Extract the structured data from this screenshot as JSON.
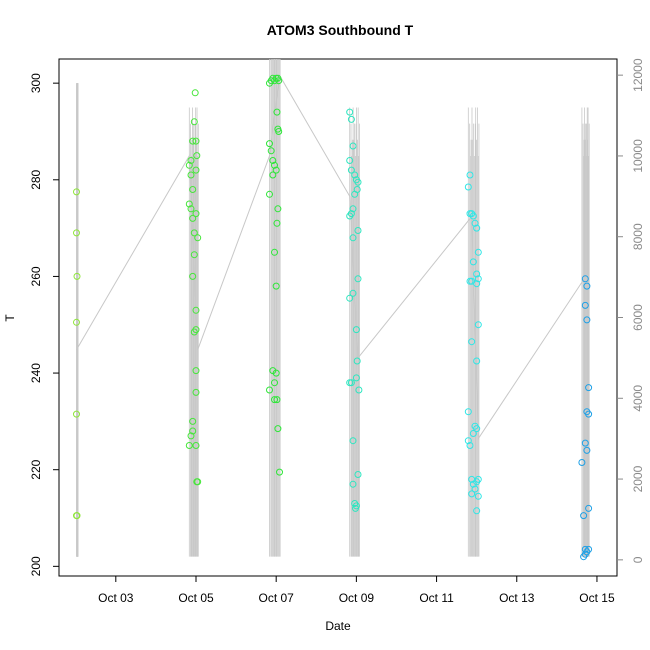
{
  "chart_data": {
    "type": "scatter",
    "title": "ATOM3 Southbound T",
    "xlabel": "Date",
    "ylabel": "T",
    "x_axis": {
      "type": "date",
      "ticks": [
        {
          "date": "2023-10-03",
          "label": "Oct 03"
        },
        {
          "date": "2023-10-05",
          "label": "Oct 05"
        },
        {
          "date": "2023-10-07",
          "label": "Oct 07"
        },
        {
          "date": "2023-10-09",
          "label": "Oct 09"
        },
        {
          "date": "2023-10-11",
          "label": "Oct 11"
        },
        {
          "date": "2023-10-13",
          "label": "Oct 13"
        },
        {
          "date": "2023-10-15",
          "label": "Oct 15"
        }
      ],
      "xlim": [
        "2023-10-01T14:00",
        "2023-10-15T12:00"
      ]
    },
    "y_axis": {
      "ticks": [
        200,
        220,
        240,
        260,
        280,
        300
      ],
      "ylim": [
        198,
        305
      ]
    },
    "y2_axis": {
      "ticks": [
        0,
        2000,
        4000,
        6000,
        8000,
        10000,
        12000
      ],
      "ylim": [
        -400,
        12400
      ],
      "color": "#8a8a8a"
    },
    "grid": false,
    "legend": "none",
    "point_style": "open-circle",
    "point_colors": {
      "Oct 02": "#8ee63a",
      "Oct 05": "#46e63a",
      "Oct 07": "#2ee638",
      "Oct 09": "#2ee6c0",
      "Oct 12": "#2ee6e6",
      "Oct 14": "#1ea0e6"
    },
    "line_color": "#c8c8c8",
    "point_series": [
      {
        "date": "2023-10-02",
        "color": "#8ee63a",
        "points": [
          [
            "10-02T00:30",
            277.5
          ],
          [
            "10-02T00:30",
            269
          ],
          [
            "10-02T00:45",
            260
          ],
          [
            "10-02T00:30",
            250.5
          ],
          [
            "10-02T00:30",
            231.5
          ],
          [
            "10-02T00:30",
            210.5
          ],
          [
            "10-02T00:45",
            210.5
          ]
        ]
      },
      {
        "date": "2023-10-05",
        "color": "#46e63a",
        "points": [
          [
            "10-04T20:00",
            283
          ],
          [
            "10-04T21:00",
            284
          ],
          [
            "10-04T22:00",
            288
          ],
          [
            "10-04T23:00",
            292
          ],
          [
            "10-04T23:30",
            298
          ],
          [
            "10-05T00:00",
            288
          ],
          [
            "10-05T00:30",
            285
          ],
          [
            "10-04T21:00",
            281
          ],
          [
            "10-04T22:00",
            278
          ],
          [
            "10-05T00:00",
            282
          ],
          [
            "10-04T20:00",
            275
          ],
          [
            "10-04T21:00",
            274
          ],
          [
            "10-04T22:00",
            272
          ],
          [
            "10-05T00:00",
            273
          ],
          [
            "10-04T23:00",
            269
          ],
          [
            "10-05T01:00",
            268
          ],
          [
            "10-04T23:00",
            264.5
          ],
          [
            "10-04T22:00",
            260
          ],
          [
            "10-05T00:00",
            253
          ],
          [
            "10-05T00:00",
            249
          ],
          [
            "10-04T23:00",
            248.5
          ],
          [
            "10-05T00:00",
            240.5
          ],
          [
            "10-05T00:00",
            236
          ],
          [
            "10-04T22:00",
            230
          ],
          [
            "10-04T21:00",
            227
          ],
          [
            "10-04T22:00",
            228
          ],
          [
            "10-04T20:00",
            225
          ],
          [
            "10-05T00:00",
            225
          ],
          [
            "10-05T00:30",
            217.5
          ],
          [
            "10-05T01:00",
            217.5
          ]
        ]
      },
      {
        "date": "2023-10-07",
        "color": "#2ee638",
        "points": [
          [
            "10-06T20:00",
            300
          ],
          [
            "10-06T21:00",
            300.5
          ],
          [
            "10-06T22:00",
            301
          ],
          [
            "10-06T23:00",
            300.5
          ],
          [
            "10-07T00:00",
            301
          ],
          [
            "10-07T01:00",
            301
          ],
          [
            "10-07T01:30",
            300.5
          ],
          [
            "10-07T00:30",
            294
          ],
          [
            "10-07T01:00",
            290.5
          ],
          [
            "10-07T01:30",
            290
          ],
          [
            "10-06T20:00",
            287.5
          ],
          [
            "10-06T21:00",
            286
          ],
          [
            "10-06T22:00",
            284
          ],
          [
            "10-06T23:00",
            283
          ],
          [
            "10-07T00:00",
            282
          ],
          [
            "10-06T22:00",
            281
          ],
          [
            "10-06T20:00",
            277
          ],
          [
            "10-07T01:00",
            274
          ],
          [
            "10-07T00:30",
            271
          ],
          [
            "10-06T23:00",
            265
          ],
          [
            "10-07T00:00",
            258
          ],
          [
            "10-06T22:00",
            240.5
          ],
          [
            "10-07T00:00",
            240
          ],
          [
            "10-06T23:00",
            238
          ],
          [
            "10-06T20:00",
            236.5
          ],
          [
            "10-06T23:00",
            234.5
          ],
          [
            "10-07T00:30",
            234.5
          ],
          [
            "10-07T01:00",
            228.5
          ],
          [
            "10-07T02:00",
            219.5
          ]
        ]
      },
      {
        "date": "2023-10-09",
        "color": "#2ee6c0",
        "points": [
          [
            "10-08T20:00",
            294
          ],
          [
            "10-08T21:00",
            292.5
          ],
          [
            "10-08T22:00",
            287
          ],
          [
            "10-08T20:00",
            284
          ],
          [
            "10-08T21:00",
            282
          ],
          [
            "10-08T23:00",
            281
          ],
          [
            "10-09T00:00",
            280
          ],
          [
            "10-09T01:00",
            279.5
          ],
          [
            "10-09T00:30",
            278
          ],
          [
            "10-08T23:00",
            277
          ],
          [
            "10-08T22:00",
            274
          ],
          [
            "10-08T21:00",
            273
          ],
          [
            "10-08T20:00",
            272.5
          ],
          [
            "10-09T01:00",
            269.5
          ],
          [
            "10-08T22:00",
            268
          ],
          [
            "10-09T01:00",
            259.5
          ],
          [
            "10-08T22:00",
            256.5
          ],
          [
            "10-08T20:00",
            255.5
          ],
          [
            "10-09T00:00",
            249
          ],
          [
            "10-09T00:30",
            242.5
          ],
          [
            "10-09T00:00",
            239
          ],
          [
            "10-08T20:00",
            238
          ],
          [
            "10-08T21:00",
            238
          ],
          [
            "10-09T01:30",
            236.5
          ],
          [
            "10-08T22:00",
            226
          ],
          [
            "10-09T01:00",
            219
          ],
          [
            "10-08T22:00",
            217
          ],
          [
            "10-08T23:00",
            213
          ],
          [
            "10-08T23:30",
            212
          ],
          [
            "10-09T00:00",
            212.5
          ]
        ]
      },
      {
        "date": "2023-10-12",
        "color": "#2ee6e6",
        "points": [
          [
            "10-11T20:00",
            281
          ],
          [
            "10-11T19:00",
            278.5
          ],
          [
            "10-11T20:00",
            273
          ],
          [
            "10-11T21:00",
            273
          ],
          [
            "10-11T22:00",
            272.5
          ],
          [
            "10-11T23:00",
            271
          ],
          [
            "10-12T00:00",
            270
          ],
          [
            "10-12T01:00",
            265
          ],
          [
            "10-11T22:00",
            263
          ],
          [
            "10-12T00:00",
            260.5
          ],
          [
            "10-11T21:00",
            259
          ],
          [
            "10-11T20:00",
            259
          ],
          [
            "10-12T01:00",
            259.5
          ],
          [
            "10-12T00:00",
            258.5
          ],
          [
            "10-12T01:00",
            250
          ],
          [
            "10-11T21:00",
            246.5
          ],
          [
            "10-12T00:00",
            242.5
          ],
          [
            "10-11T19:00",
            232
          ],
          [
            "10-11T23:00",
            229
          ],
          [
            "10-12T00:00",
            228.5
          ],
          [
            "10-11T22:00",
            227.5
          ],
          [
            "10-11T19:00",
            226
          ],
          [
            "10-11T20:00",
            225
          ],
          [
            "10-11T21:00",
            218
          ],
          [
            "10-11T22:00",
            217
          ],
          [
            "10-11T23:00",
            216
          ],
          [
            "10-12T00:00",
            217.5
          ],
          [
            "10-12T01:00",
            218
          ],
          [
            "10-11T21:00",
            215
          ],
          [
            "10-12T01:00",
            214.5
          ],
          [
            "10-12T00:00",
            211.5
          ]
        ]
      },
      {
        "date": "2023-10-14",
        "color": "#1ea0e6",
        "points": [
          [
            "10-14T17:00",
            259.5
          ],
          [
            "10-14T18:00",
            258
          ],
          [
            "10-14T17:00",
            254
          ],
          [
            "10-14T18:00",
            251
          ],
          [
            "10-14T19:00",
            237
          ],
          [
            "10-14T18:00",
            232
          ],
          [
            "10-14T19:00",
            231.5
          ],
          [
            "10-14T17:00",
            225.5
          ],
          [
            "10-14T18:00",
            224
          ],
          [
            "10-14T15:00",
            221.5
          ],
          [
            "10-14T19:00",
            212
          ],
          [
            "10-14T16:00",
            210.5
          ],
          [
            "10-14T17:00",
            203.5
          ],
          [
            "10-14T18:00",
            203
          ],
          [
            "10-14T19:00",
            203.5
          ],
          [
            "10-14T16:00",
            202
          ],
          [
            "10-14T17:00",
            202.5
          ]
        ]
      }
    ],
    "line_series": {
      "y_axis": "right",
      "color": "#c8c8c8",
      "baseline": [
        [
          "10-02T00:30",
          5200
        ],
        [
          "10-04T20:00",
          10000
        ],
        [
          "10-05T01:00",
          5200
        ],
        [
          "10-06T20:00",
          10000
        ],
        [
          "10-07T02:00",
          12000
        ],
        [
          "10-08T20:00",
          9000
        ],
        [
          "10-09T01:00",
          5000
        ],
        [
          "10-11T21:00",
          8500
        ],
        [
          "10-12T01:00",
          3000
        ],
        [
          "10-14T17:00",
          7000
        ]
      ]
    }
  }
}
